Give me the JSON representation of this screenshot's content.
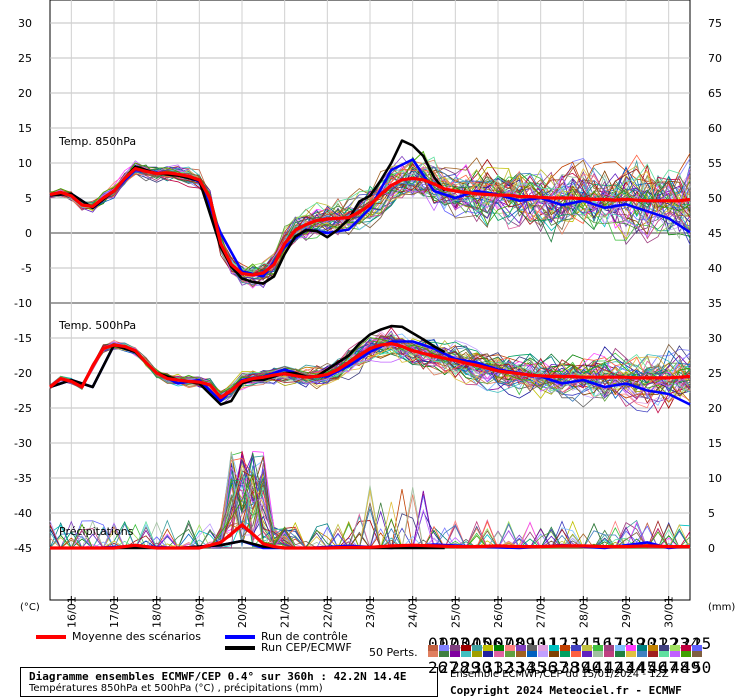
{
  "chart_data": {
    "type": "line",
    "x_dates": [
      "16/01",
      "17/01",
      "18/01",
      "19/01",
      "20/01",
      "21/01",
      "22/01",
      "23/01",
      "24/01",
      "25/01",
      "26/01",
      "27/01",
      "28/01",
      "29/01",
      "30/01"
    ],
    "x_start": "15/01/2024 12Z",
    "x_range_hours": [
      0,
      360
    ],
    "left_axis": {
      "label": "(°C)",
      "ticks": [
        30,
        25,
        20,
        15,
        10,
        5,
        0,
        -5,
        -10,
        -15,
        -20,
        -25,
        -30,
        -35,
        -40,
        -45
      ]
    },
    "right_axis": {
      "label": "(mm)",
      "ticks": [
        75,
        70,
        65,
        60,
        55,
        50,
        45,
        40,
        35,
        30,
        25,
        20,
        15,
        10,
        5,
        0
      ]
    },
    "ylim": [
      -55,
      33
    ],
    "panels": {
      "t850": {
        "label": "Temp. 850hPa"
      },
      "t500": {
        "label": "Temp. 500hPa"
      },
      "precip": {
        "label": "Précipitations"
      }
    },
    "series": [
      {
        "name": "Moyenne des scénarios",
        "color": "#ff0000",
        "panel": "t850",
        "x": [
          0,
          6,
          12,
          18,
          24,
          30,
          36,
          42,
          48,
          54,
          60,
          66,
          72,
          78,
          84,
          90,
          96,
          102,
          108,
          114,
          120,
          126,
          132,
          138,
          144,
          150,
          156,
          162,
          168,
          174,
          180,
          186,
          192,
          198,
          204,
          210,
          216,
          222,
          228,
          234,
          240,
          246,
          252,
          258,
          264,
          270,
          276,
          282,
          288,
          294,
          300,
          306,
          312,
          318,
          324,
          330,
          336,
          342,
          348,
          354,
          360
        ],
        "values": [
          5.5,
          5.8,
          5.3,
          4,
          3.8,
          5,
          6,
          7.8,
          9.2,
          8.8,
          8.5,
          8.6,
          8.4,
          8.1,
          7.6,
          5,
          -1.5,
          -4.5,
          -5.8,
          -6,
          -5.7,
          -4.5,
          -1.5,
          0.4,
          1.2,
          1.8,
          2,
          2.1,
          2.2,
          3,
          4,
          5.5,
          6.8,
          7.6,
          7.8,
          7.6,
          7,
          6.3,
          6,
          5.8,
          5.6,
          5.5,
          5.4,
          5.4,
          5.2,
          5.2,
          5.1,
          5,
          5,
          5,
          4.9,
          4.8,
          4.8,
          4.7,
          4.8,
          4.7,
          4.6,
          4.6,
          4.6,
          4.6,
          4.8
        ]
      },
      {
        "name": "Run de contrôle",
        "color": "#0000ff",
        "panel": "t850",
        "x": [
          0,
          12,
          24,
          36,
          48,
          60,
          72,
          84,
          96,
          108,
          120,
          132,
          144,
          156,
          168,
          180,
          192,
          204,
          216,
          228,
          240,
          252,
          264,
          276,
          288,
          300,
          312,
          324,
          336,
          348,
          360
        ],
        "values": [
          5.4,
          5.6,
          3.6,
          6,
          9,
          8.6,
          8.3,
          7.4,
          0,
          -5.5,
          -6.2,
          -2,
          0.5,
          0,
          0.5,
          3.5,
          9,
          10.5,
          6,
          5,
          6,
          5.5,
          4.6,
          5,
          4,
          4.6,
          3.6,
          4.1,
          3.1,
          2.1,
          0.1
        ]
      },
      {
        "name": "Run CEP/ECMWF",
        "color": "#000000",
        "panel": "t850",
        "x": [
          0,
          12,
          24,
          36,
          48,
          60,
          72,
          84,
          96,
          102,
          108,
          114,
          120,
          126,
          132,
          138,
          144,
          150,
          156,
          162,
          168,
          174,
          180,
          186,
          192,
          198,
          204,
          210,
          216,
          222
        ],
        "values": [
          5.4,
          5.6,
          3.6,
          6,
          9.5,
          8.5,
          8.2,
          7.5,
          -2,
          -4.8,
          -6.5,
          -7,
          -7.2,
          -6.2,
          -3,
          -0.5,
          0.4,
          0.3,
          -0.6,
          0.5,
          2,
          4.5,
          5.3,
          7.5,
          10,
          13.2,
          12.5,
          11,
          8,
          6
        ]
      },
      {
        "name": "Moyenne des scénarios",
        "color": "#ff0000",
        "panel": "t500",
        "x": [
          0,
          6,
          12,
          18,
          24,
          30,
          36,
          42,
          48,
          54,
          60,
          66,
          72,
          78,
          84,
          90,
          96,
          102,
          108,
          114,
          120,
          126,
          132,
          138,
          144,
          150,
          156,
          162,
          168,
          174,
          180,
          186,
          192,
          198,
          204,
          210,
          216,
          222,
          228,
          234,
          240,
          246,
          252,
          258,
          264,
          270,
          276,
          282,
          288,
          294,
          300,
          306,
          312,
          318,
          324,
          330,
          336,
          342,
          348,
          354,
          360
        ],
        "values": [
          -22,
          -20.8,
          -21.2,
          -22,
          -19,
          -16.5,
          -16,
          -16.2,
          -16.8,
          -18.5,
          -20,
          -20.8,
          -21,
          -21.2,
          -21.3,
          -21.7,
          -23.5,
          -22.5,
          -21.2,
          -20.8,
          -20.6,
          -20.3,
          -20.1,
          -20.4,
          -20.6,
          -20.5,
          -20.2,
          -19.5,
          -18.5,
          -17.5,
          -16.5,
          -16,
          -15.8,
          -16.2,
          -16.8,
          -17.2,
          -17.6,
          -17.9,
          -18.2,
          -18.6,
          -18.9,
          -19.3,
          -19.7,
          -19.9,
          -20.1,
          -20.3,
          -20.4,
          -20.5,
          -20.5,
          -20.5,
          -20.6,
          -20.6,
          -20.6,
          -20.6,
          -20.6,
          -20.7,
          -20.7,
          -20.7,
          -20.7,
          -20.6,
          -20.5
        ]
      },
      {
        "name": "Run de contrôle",
        "color": "#0000ff",
        "panel": "t500",
        "x": [
          0,
          12,
          24,
          36,
          48,
          60,
          72,
          84,
          96,
          108,
          120,
          132,
          144,
          156,
          168,
          180,
          192,
          204,
          216,
          228,
          240,
          252,
          264,
          276,
          288,
          300,
          312,
          324,
          336,
          348,
          360
        ],
        "values": [
          -22,
          -21,
          -22,
          -16,
          -17,
          -20,
          -21.5,
          -21,
          -24,
          -21,
          -20.5,
          -19.5,
          -20.5,
          -20.5,
          -19,
          -17,
          -15.5,
          -15.5,
          -16.5,
          -18,
          -18.5,
          -19.5,
          -20,
          -20.5,
          -21.5,
          -21,
          -22,
          -21.5,
          -22.5,
          -23,
          -24.5
        ]
      },
      {
        "name": "Run CEP/ECMWF",
        "color": "#000000",
        "panel": "t500",
        "x": [
          0,
          12,
          24,
          36,
          48,
          60,
          72,
          84,
          96,
          102,
          108,
          114,
          120,
          126,
          132,
          138,
          144,
          150,
          156,
          162,
          168,
          174,
          180,
          186,
          192,
          198,
          204,
          210,
          216,
          222
        ],
        "values": [
          -22,
          -21,
          -22,
          -16,
          -17,
          -20,
          -21,
          -21.5,
          -24.5,
          -24,
          -21.5,
          -21,
          -21,
          -20.5,
          -20,
          -20,
          -20.5,
          -20.5,
          -19.5,
          -18.5,
          -17.5,
          -15.8,
          -14.5,
          -13.8,
          -13.3,
          -13.4,
          -14.3,
          -15.2,
          -16.2,
          -17
        ]
      },
      {
        "name": "Moyenne des scénarios",
        "color": "#ff0000",
        "panel": "precip",
        "unit": "mm",
        "x": [
          0,
          12,
          24,
          36,
          48,
          60,
          72,
          84,
          96,
          102,
          108,
          114,
          120,
          126,
          132,
          144,
          156,
          168,
          180,
          192,
          204,
          216,
          228,
          240,
          252,
          264,
          276,
          288,
          300,
          312,
          324,
          336,
          348,
          360
        ],
        "values": [
          0,
          0,
          0,
          0,
          0.4,
          0,
          0,
          0,
          0.8,
          2,
          3.3,
          2,
          0.6,
          0.2,
          0,
          0,
          0,
          0.1,
          0.1,
          0.3,
          0.4,
          0.3,
          0.2,
          0.2,
          0.3,
          0.2,
          0.2,
          0.3,
          0.3,
          0.2,
          0.2,
          0.3,
          0.2,
          0.2
        ]
      },
      {
        "name": "Run de contrôle",
        "color": "#0000ff",
        "panel": "precip",
        "unit": "mm",
        "x": [
          0,
          24,
          48,
          72,
          96,
          108,
          120,
          144,
          168,
          192,
          216,
          240,
          264,
          288,
          312,
          336,
          348,
          360
        ],
        "values": [
          0,
          0,
          0.3,
          0,
          0.4,
          1,
          0,
          0,
          0.3,
          0,
          0.5,
          0.2,
          0,
          0.4,
          0,
          0.8,
          0,
          0.3
        ]
      },
      {
        "name": "Run CEP/ECMWF",
        "color": "#000000",
        "panel": "precip",
        "unit": "mm",
        "x": [
          0,
          24,
          48,
          72,
          96,
          108,
          120,
          132,
          144,
          168,
          192,
          216,
          222
        ],
        "values": [
          0,
          0,
          0,
          0,
          0.4,
          1,
          0.2,
          0,
          0,
          0,
          0,
          0,
          0
        ]
      }
    ],
    "ensemble_members": 50
  },
  "legend": {
    "mean": "Moyenne des scénarios",
    "control": "Run de contrôle",
    "cep": "Run CEP/ECMWF",
    "perts": "50 Perts."
  },
  "member_colors": [
    "#c06040",
    "#8080ff",
    "#804080",
    "#a00000",
    "#40a0a0",
    "#c0c000",
    "#008000",
    "#ff8080",
    "#8040c0",
    "#606060",
    "#e0a0e0",
    "#00c0c0",
    "#c04000",
    "#4040c0",
    "#c0c040",
    "#40c040",
    "#a04080",
    "#80c0ff",
    "#ff40ff",
    "#008080",
    "#c08000",
    "#404080",
    "#a0e060",
    "#c00040",
    "#6060ff",
    "#e08060",
    "#408040",
    "#8000a0",
    "#40c0c0",
    "#a0a000",
    "#2020a0",
    "#e060a0",
    "#60a040",
    "#a06020",
    "#0060c0",
    "#c0a0ff",
    "#804000",
    "#00a060",
    "#ff6040",
    "#6020c0",
    "#a0c0a0",
    "#c04080",
    "#208040",
    "#e0c040",
    "#4080c0",
    "#a02020",
    "#60e0a0",
    "#c060ff",
    "#40a000",
    "#806040"
  ],
  "caption": {
    "title": "Diagramme ensembles ECMWF/CEP 0.4° sur 360h : 42.2N 14.4E",
    "subtitle": "Températures 850hPa et 500hPa (°C) , précipitations (mm)",
    "ensemble_info": "Ensemble ECMWF/CEP du 15/01/2024 - 12Z",
    "copyright": "Copyright 2024 Meteociel.fr - ECMWF"
  }
}
